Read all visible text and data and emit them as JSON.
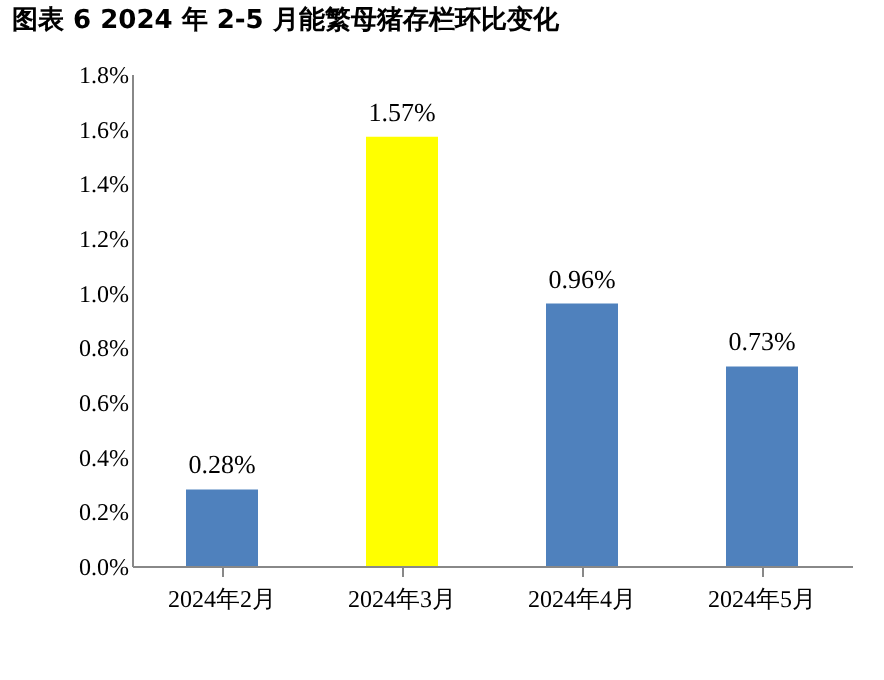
{
  "chart_data": {
    "type": "bar",
    "title": "图表 6 2024 年 2-5 月能繁母猪存栏环比变化",
    "categories": [
      "2024年2月",
      "2024年3月",
      "2024年4月",
      "2024年5月"
    ],
    "values": [
      0.28,
      1.57,
      0.96,
      0.73
    ],
    "colors": [
      "#4f81bd",
      "#ffff00",
      "#4f81bd",
      "#4f81bd"
    ],
    "value_labels": [
      "0.28%",
      "1.57%",
      "0.96%",
      "0.73%"
    ],
    "ylim": [
      0,
      1.8
    ],
    "yticks": [
      {
        "value": 0,
        "label": "0.0%"
      },
      {
        "value": 0.2,
        "label": "0.2%"
      },
      {
        "value": 0.4,
        "label": "0.4%"
      },
      {
        "value": 0.6,
        "label": "0.6%"
      },
      {
        "value": 0.8,
        "label": "0.8%"
      },
      {
        "value": 1.0,
        "label": "1.0%"
      },
      {
        "value": 1.2,
        "label": "1.2%"
      },
      {
        "value": 1.4,
        "label": "1.4%"
      },
      {
        "value": 1.6,
        "label": "1.6%"
      },
      {
        "value": 1.8,
        "label": "1.8%"
      }
    ],
    "grid": false
  }
}
